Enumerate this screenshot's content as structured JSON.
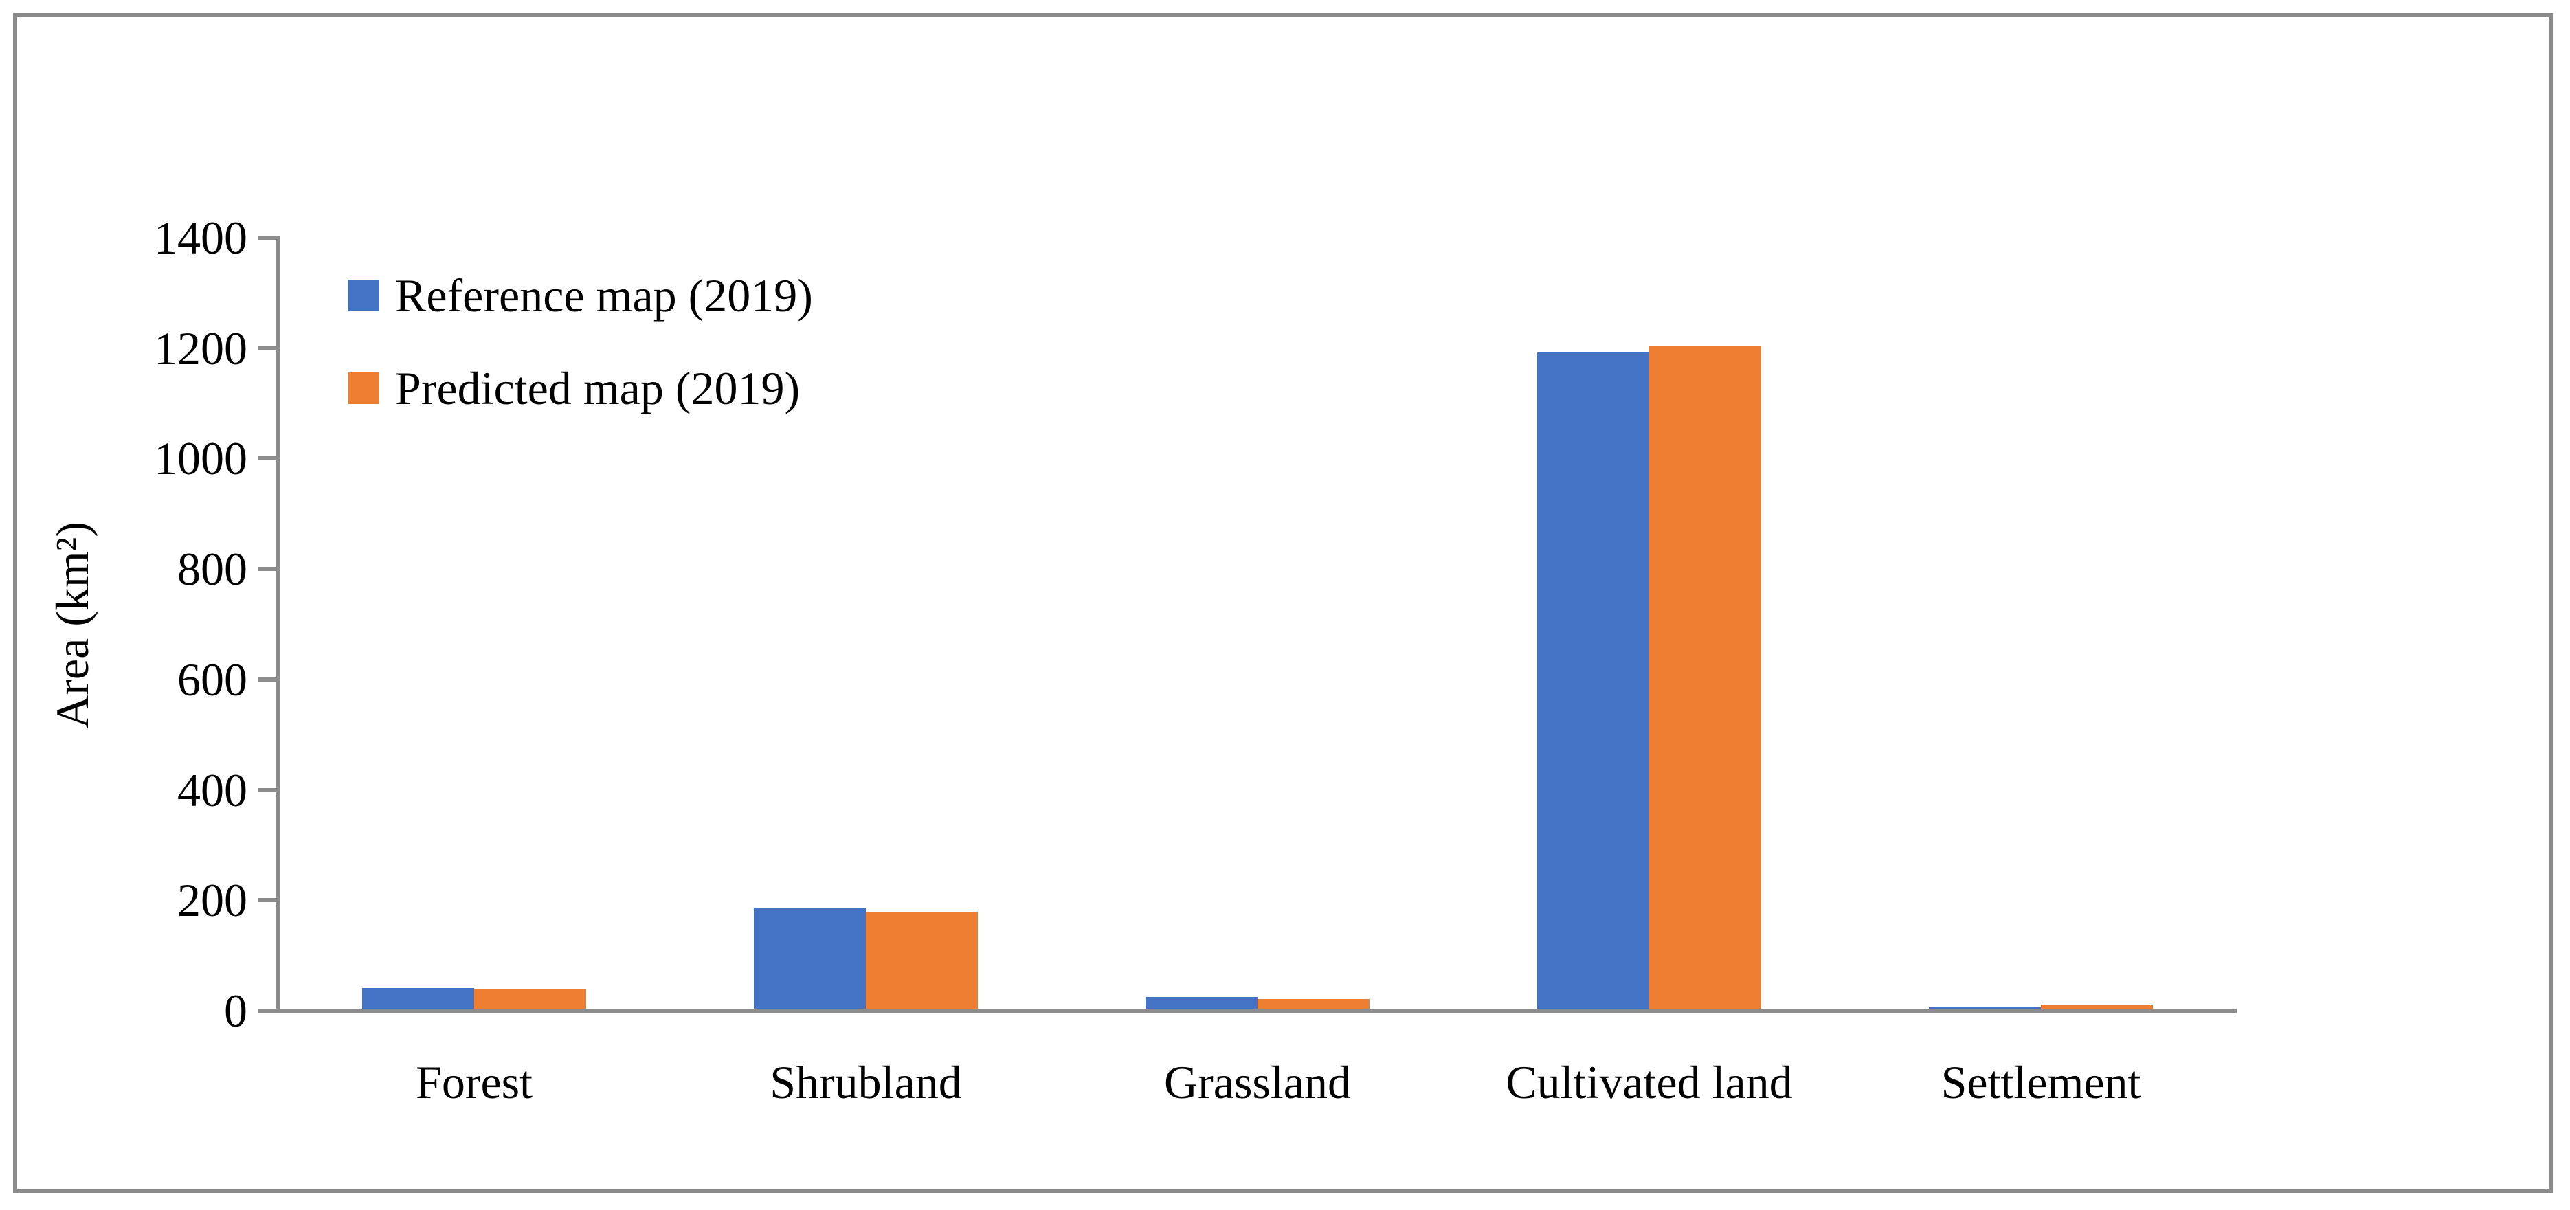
{
  "figure": {
    "background_color": "#ffffff",
    "frame_border_color": "#8a8a8a",
    "axis_color": "#8c8c8c",
    "text_color": "#000000"
  },
  "chart_data": {
    "type": "bar",
    "title": "",
    "xlabel": "",
    "ylabel": "Area (km²)",
    "categories": [
      "Forest",
      "Shrubland",
      "Grassland",
      "Cultivated land",
      "Settlement"
    ],
    "series": [
      {
        "name": "Reference map (2019)",
        "color": "#4472C4",
        "values": [
          37,
          183,
          21,
          1188,
          2
        ]
      },
      {
        "name": "Predicted map (2019)",
        "color": "#ED7D31",
        "values": [
          35,
          175,
          17,
          1200,
          7
        ]
      }
    ],
    "ylim": [
      0,
      1400
    ],
    "yticks": [
      0,
      200,
      400,
      600,
      800,
      1000,
      1200,
      1400
    ],
    "grid": false,
    "legend_position": "inside-top-left",
    "bar_gap_within_group": 0,
    "notes": "clustered bars, no gridlines, serif fonts"
  }
}
